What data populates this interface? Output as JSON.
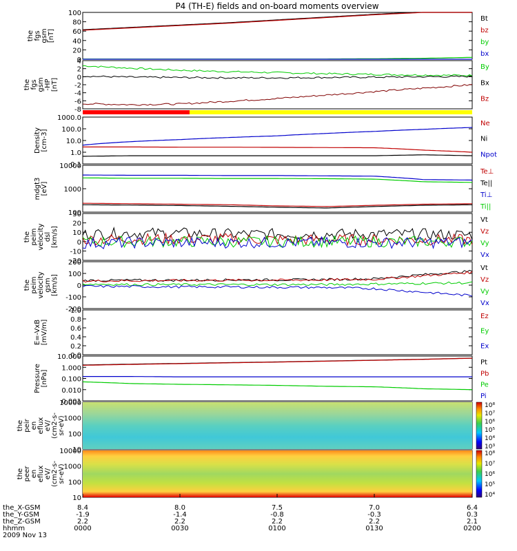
{
  "title": "P4 (TH-E) fields and on-board moments overview",
  "colors": {
    "black": "#000000",
    "red": "#c00000",
    "green": "#00cc00",
    "blue": "#0000cc",
    "darkred": "#800000"
  },
  "chart_data": [
    {
      "type": "line",
      "id": "fgs",
      "ylabel": [
        "the",
        "fgs",
        "gsm",
        "[nT]"
      ],
      "yticks": [
        "100",
        "80",
        "60",
        "40",
        "20",
        "0"
      ],
      "ylim": [
        0,
        100
      ],
      "legend": [
        "Bt",
        "bz",
        "by",
        "bx"
      ],
      "series": [
        {
          "name": "Bt",
          "color": "#000000",
          "values": [
            63,
            68,
            73,
            78,
            84,
            90,
            96,
            101,
            104
          ]
        },
        {
          "name": "bz",
          "color": "#c00000",
          "values": [
            62,
            67,
            72,
            77,
            83,
            89,
            95,
            100,
            103
          ]
        },
        {
          "name": "by",
          "color": "#00cc00",
          "values": [
            0.5,
            0.5,
            0.5,
            0.5,
            0.5,
            0.5,
            1,
            2,
            4
          ]
        },
        {
          "name": "bx",
          "color": "#0000cc",
          "values": [
            0,
            0,
            0,
            0,
            0,
            0,
            0,
            0,
            0
          ]
        }
      ]
    },
    {
      "type": "line",
      "id": "fgs_hp",
      "ylabel": [
        "the",
        "fgs",
        "gsm",
        "-HP",
        "[nT]"
      ],
      "yticks": [
        "4",
        "2",
        "0",
        "-2",
        "-4",
        "-6",
        "-8"
      ],
      "ylim": [
        -10,
        4
      ],
      "legend": [
        "By",
        "Bx",
        "Bz"
      ],
      "series": [
        {
          "name": "By",
          "color": "#00cc00",
          "values": [
            2.5,
            1.8,
            1.2,
            0.8,
            0.5,
            0.2,
            0,
            -0.2,
            -0.3
          ]
        },
        {
          "name": "Bx",
          "color": "#000000",
          "values": [
            -0.5,
            -0.8,
            -0.9,
            -1.0,
            -1.0,
            -0.9,
            -0.8,
            -0.7,
            -0.6
          ]
        },
        {
          "name": "Bz",
          "color": "#800000",
          "values": [
            -8.5,
            -8.8,
            -8.6,
            -7.8,
            -7.0,
            -6.0,
            -5.0,
            -4.0,
            -3.0
          ]
        }
      ]
    },
    {
      "type": "line",
      "id": "density",
      "ylabel": [
        "Density",
        "[cm-3]"
      ],
      "yticks": [
        "1000.0",
        "100.0",
        "10.0",
        "1.0",
        "0.1"
      ],
      "ylim": [
        0.1,
        1000
      ],
      "log": true,
      "legend": [
        "Ne",
        "Ni",
        "Npot"
      ],
      "series": [
        {
          "name": "Ne",
          "color": "#c00000",
          "values": [
            2.8,
            2.8,
            2.7,
            2.7,
            2.6,
            2.5,
            2.4,
            1.5,
            1.0
          ]
        },
        {
          "name": "Ni",
          "color": "#000000",
          "values": [
            0.45,
            0.5,
            0.5,
            0.5,
            0.5,
            0.5,
            0.5,
            0.6,
            0.5
          ]
        },
        {
          "name": "Npot",
          "color": "#0000cc",
          "values": [
            4,
            8,
            12,
            18,
            25,
            40,
            60,
            90,
            130
          ]
        }
      ]
    },
    {
      "type": "line",
      "id": "temperature",
      "ylabel": [
        "mdgt3",
        "[eV]"
      ],
      "yticks": [
        "10000",
        "1000",
        "100"
      ],
      "ylim": [
        30,
        10000
      ],
      "log": true,
      "legend": [
        "Te⊥",
        "Te||",
        "Ti⊥",
        "Ti||"
      ],
      "series": [
        {
          "name": "Te⊥",
          "color": "#c00000",
          "values": [
            90,
            85,
            80,
            75,
            65,
            60,
            70,
            80,
            85
          ]
        },
        {
          "name": "Te||",
          "color": "#000000",
          "values": [
            75,
            72,
            68,
            62,
            55,
            50,
            60,
            70,
            75
          ]
        },
        {
          "name": "Ti⊥",
          "color": "#00cc00",
          "values": [
            2100,
            2000,
            2000,
            1950,
            1950,
            1900,
            1800,
            1300,
            1200
          ]
        },
        {
          "name": "Ti||",
          "color": "#0000cc",
          "values": [
            3000,
            2900,
            2900,
            2800,
            2800,
            2700,
            2600,
            1700,
            1600
          ]
        }
      ]
    },
    {
      "type": "line",
      "id": "velocity_dsl",
      "ylabel": [
        "the",
        "peim",
        "velocity",
        "dsl",
        "[km/s]"
      ],
      "yticks": [
        "30",
        "20",
        "10",
        "0",
        "-10",
        "-20"
      ],
      "ylim": [
        -20,
        30
      ],
      "legend": [
        "Vt",
        "Vz",
        "Vy",
        "Vx"
      ],
      "series": [
        {
          "name": "Vt",
          "color": "#000000",
          "values": [
            8,
            9,
            9,
            8,
            8,
            8,
            8,
            8,
            7
          ]
        },
        {
          "name": "Vz",
          "color": "#c00000",
          "values": [
            2,
            3,
            3,
            3,
            2,
            2,
            2,
            2,
            2
          ]
        },
        {
          "name": "Vy",
          "color": "#00cc00",
          "values": [
            0,
            0,
            0,
            0,
            0,
            0,
            0,
            0,
            0
          ]
        },
        {
          "name": "Vx",
          "color": "#0000cc",
          "values": [
            -2,
            -1,
            -1,
            -1,
            -1,
            -1,
            -1,
            -1,
            -1
          ]
        }
      ]
    },
    {
      "type": "line",
      "id": "velocity_gsm",
      "ylabel": [
        "the",
        "peim",
        "velocity",
        "gsm",
        "[km/s]"
      ],
      "yticks": [
        "200",
        "100",
        "0",
        "-100",
        "-200"
      ],
      "ylim": [
        -200,
        200
      ],
      "legend": [
        "Vt",
        "Vz",
        "Vy",
        "Vx"
      ],
      "series": [
        {
          "name": "Vt",
          "color": "#000000",
          "values": [
            40,
            42,
            42,
            45,
            45,
            48,
            55,
            90,
            120
          ]
        },
        {
          "name": "Vz",
          "color": "#c00000",
          "values": [
            35,
            38,
            40,
            42,
            43,
            45,
            50,
            80,
            110
          ]
        },
        {
          "name": "Vy",
          "color": "#00cc00",
          "values": [
            10,
            5,
            5,
            5,
            5,
            5,
            10,
            15,
            20
          ]
        },
        {
          "name": "Vx",
          "color": "#0000cc",
          "values": [
            -10,
            -12,
            -15,
            -15,
            -18,
            -20,
            -30,
            -60,
            -90
          ]
        }
      ]
    },
    {
      "type": "line",
      "id": "efield",
      "ylabel": [
        "E=-VxB",
        "[mV/m]"
      ],
      "yticks": [
        "1.0",
        "0.8",
        "0.6",
        "0.4",
        "0.2",
        "0.0"
      ],
      "ylim": [
        0,
        1
      ],
      "legend": [
        "Ez",
        "Ey",
        "Ex"
      ],
      "series": []
    },
    {
      "type": "line",
      "id": "pressure",
      "ylabel": [
        "Pressure",
        "[nPa]"
      ],
      "yticks": [
        "10.000",
        "1.000",
        "0.100",
        "0.010",
        "0.001"
      ],
      "ylim": [
        0.001,
        10
      ],
      "log": true,
      "legend": [
        "Pt",
        "Pb",
        "Pe",
        "Pi"
      ],
      "series": [
        {
          "name": "Pt",
          "color": "#000000",
          "values": [
            1.6,
            1.9,
            2.2,
            2.6,
            3.0,
            3.6,
            4.3,
            5.2,
            6.5
          ]
        },
        {
          "name": "Pb",
          "color": "#c00000",
          "values": [
            1.5,
            1.8,
            2.1,
            2.5,
            2.9,
            3.5,
            4.2,
            5.1,
            6.4
          ]
        },
        {
          "name": "Pe",
          "color": "#0000cc",
          "values": [
            0.15,
            0.15,
            0.14,
            0.14,
            0.14,
            0.14,
            0.14,
            0.14,
            0.14
          ]
        },
        {
          "name": "Pi",
          "color": "#00cc00",
          "values": [
            0.05,
            0.035,
            0.03,
            0.027,
            0.024,
            0.02,
            0.018,
            0.012,
            0.01
          ]
        }
      ]
    },
    {
      "type": "heatmap",
      "id": "ion_spec",
      "ylabel": [
        "the",
        "peir",
        "en",
        "eflux",
        "eV/",
        "(cm2-s-",
        "sr-eV)"
      ],
      "yticks": [
        "10000",
        "1000",
        "100",
        "10"
      ],
      "cbar_ticks": [
        "10⁸",
        "10⁷",
        "10⁶",
        "10⁵",
        "10⁴",
        "10³"
      ]
    },
    {
      "type": "heatmap",
      "id": "elec_spec",
      "ylabel": [
        "the",
        "peer",
        "en",
        "eflux",
        "eV/",
        "(cm2-s-",
        "sr-eV)"
      ],
      "yticks": [
        "10000",
        "1000",
        "100",
        "10"
      ],
      "cbar_ticks": [
        "10⁸",
        "10⁷",
        "10⁶",
        "10⁵",
        "10⁴"
      ]
    }
  ],
  "xaxis": {
    "row_labels": [
      "the_X-GSM",
      "the_Y-GSM",
      "the_Z-GSM",
      "hhmm",
      "2009 Nov 13"
    ],
    "columns": [
      [
        "8.4",
        "-1.9",
        "2.2",
        "0000"
      ],
      [
        "8.0",
        "-1.4",
        "2.2",
        "0030"
      ],
      [
        "7.5",
        "-0.8",
        "2.2",
        "0100"
      ],
      [
        "7.0",
        "-0.3",
        "2.2",
        "0130"
      ],
      [
        "6.4",
        "0.3",
        "2.1",
        "0200"
      ]
    ]
  }
}
